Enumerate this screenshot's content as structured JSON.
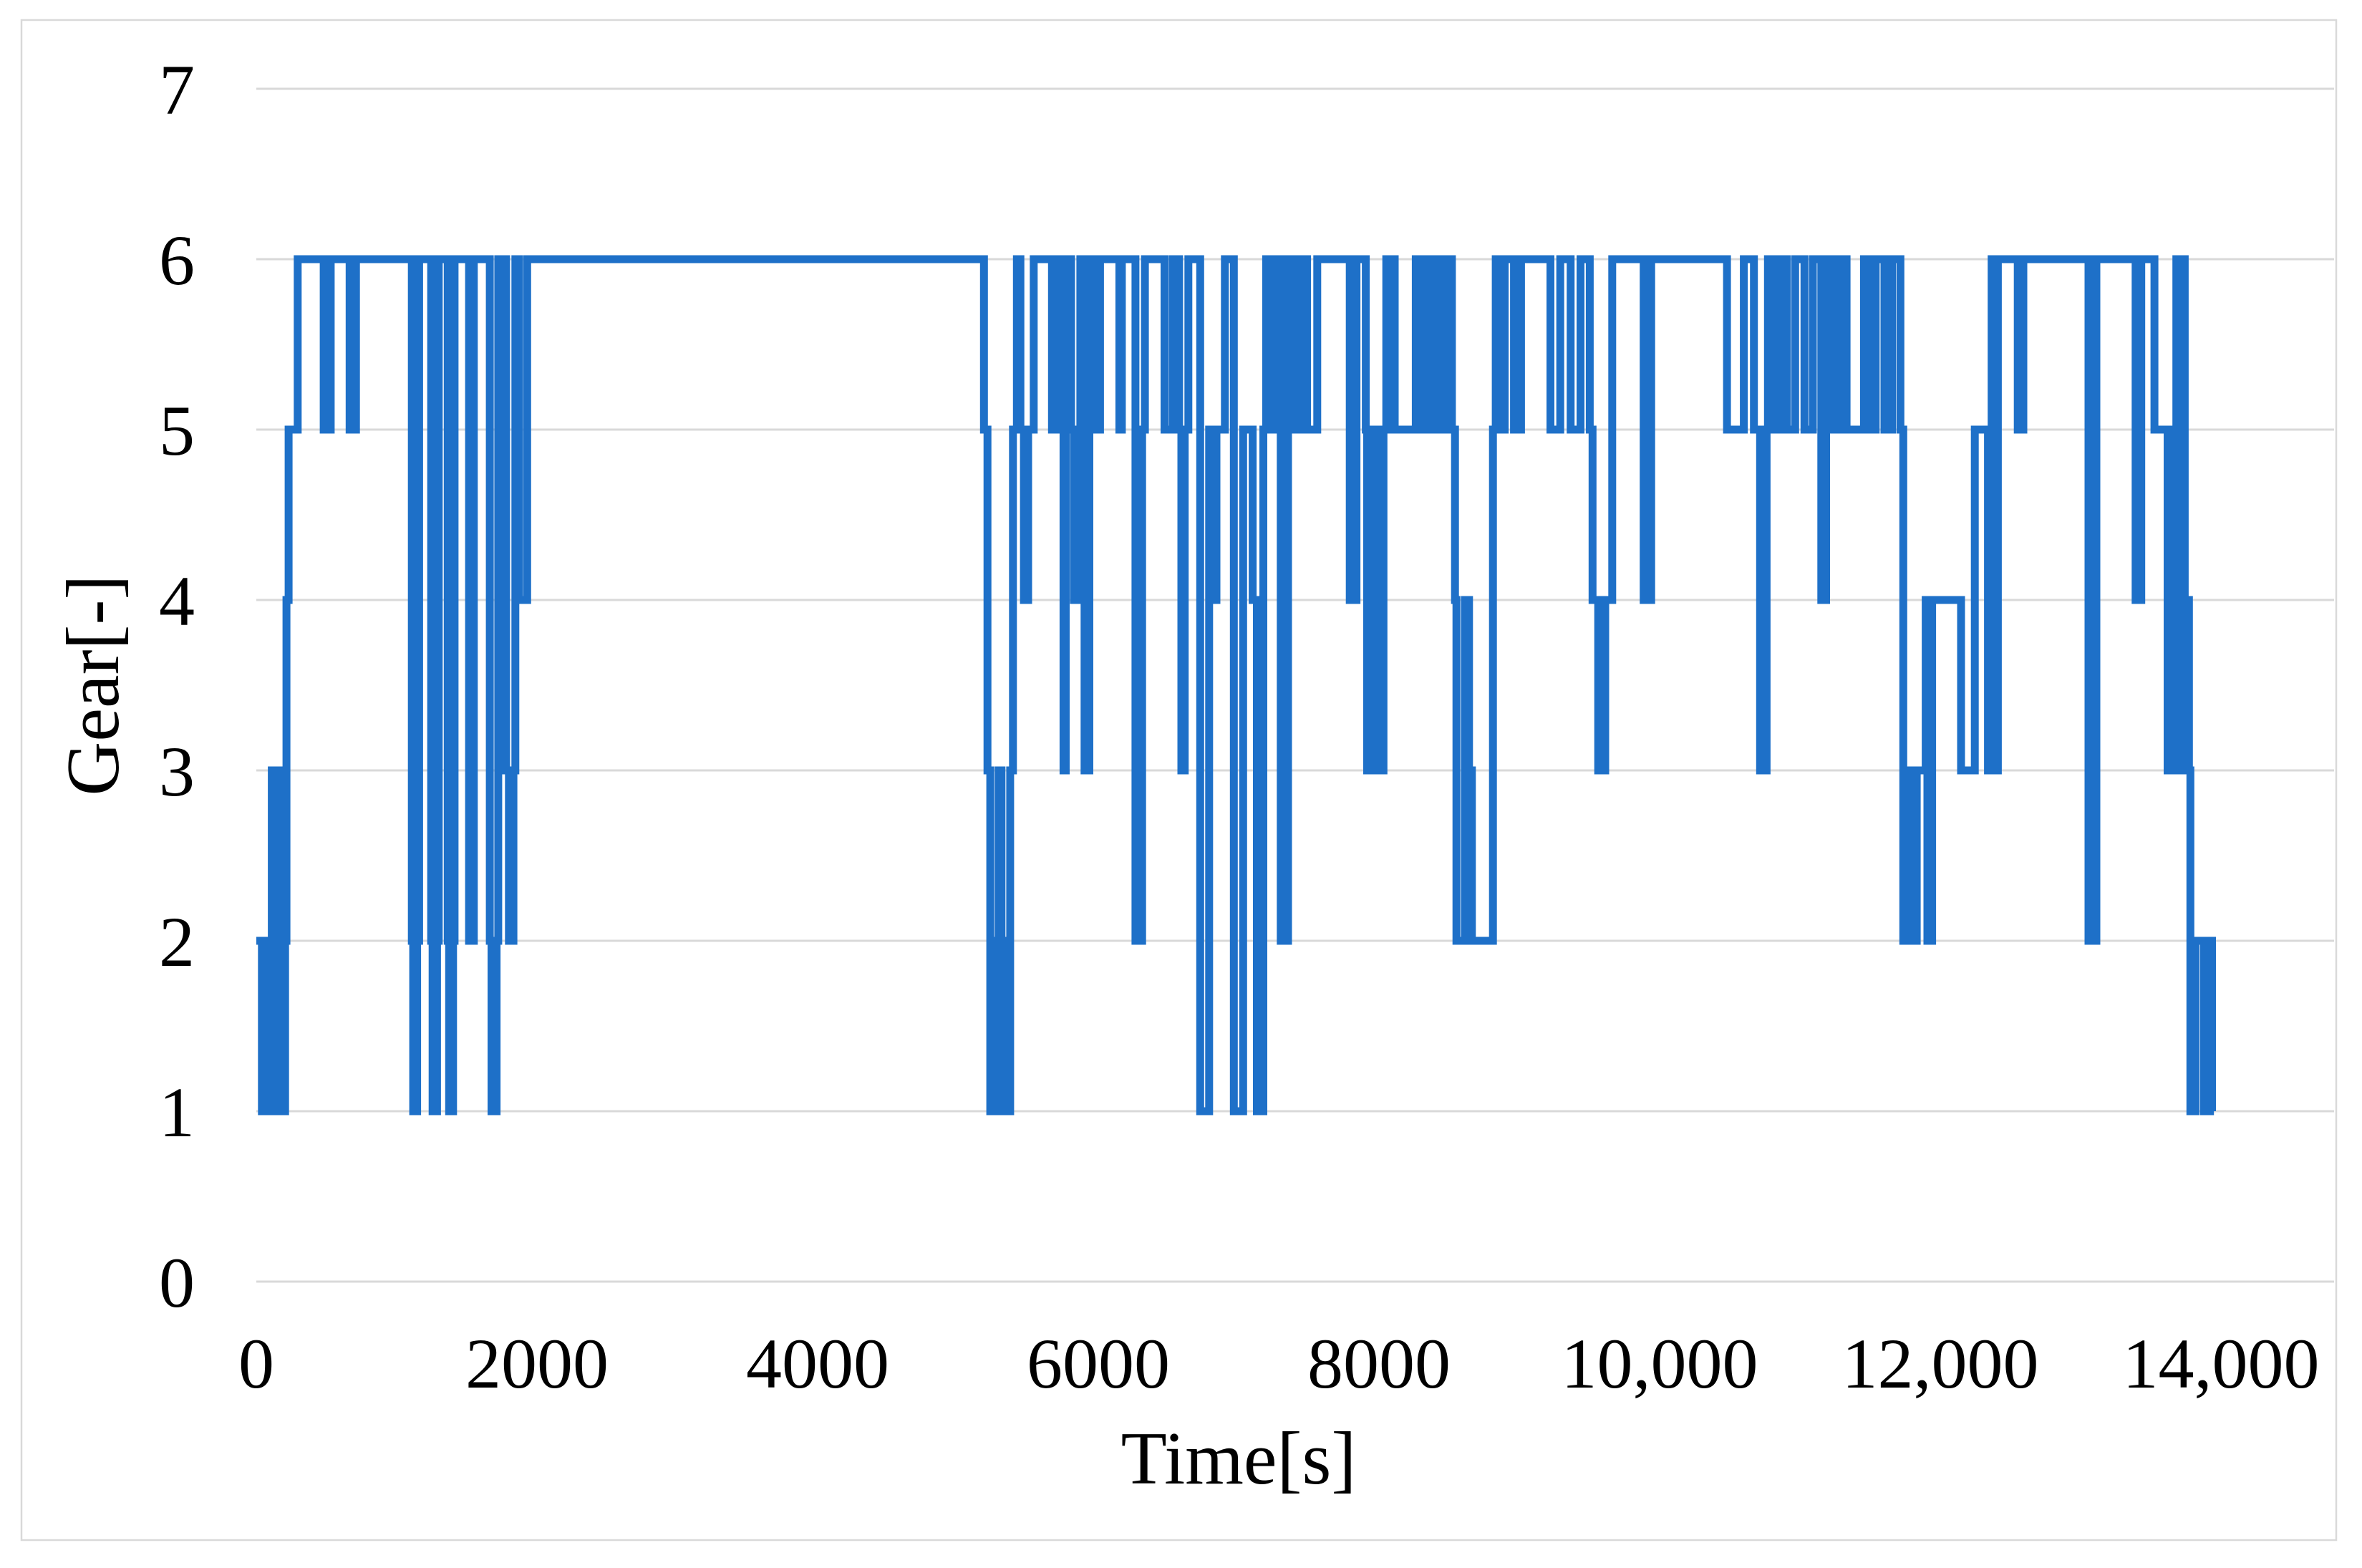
{
  "chart": {
    "background": "#FFFFFF",
    "border_color": "#D9D9D9",
    "gridline_color": "#D9D9D9",
    "line_color": "#1E70C8",
    "text_color": "#000000",
    "line_width": 11
  },
  "chart_data": {
    "type": "line",
    "step": true,
    "title": "",
    "xlabel": "Time[s]",
    "ylabel": "Gear[-]",
    "xlim": [
      0,
      14800
    ],
    "ylim": [
      0,
      7
    ],
    "grid": "horizontal-only",
    "legend_position": "none",
    "x_ticks": [
      {
        "value": 0,
        "label": "0"
      },
      {
        "value": 2000,
        "label": "2000"
      },
      {
        "value": 4000,
        "label": "4000"
      },
      {
        "value": 6000,
        "label": "6000"
      },
      {
        "value": 8000,
        "label": "8000"
      },
      {
        "value": 10000,
        "label": "10,000"
      },
      {
        "value": 12000,
        "label": "12,000"
      },
      {
        "value": 14000,
        "label": "14,000"
      }
    ],
    "y_ticks": [
      {
        "value": 0,
        "label": "0"
      },
      {
        "value": 1,
        "label": "1"
      },
      {
        "value": 2,
        "label": "2"
      },
      {
        "value": 3,
        "label": "3"
      },
      {
        "value": 4,
        "label": "4"
      },
      {
        "value": 5,
        "label": "5"
      },
      {
        "value": 6,
        "label": "6"
      },
      {
        "value": 7,
        "label": "7"
      }
    ],
    "series": [
      {
        "name": "Gear",
        "points": [
          [
            0,
            2
          ],
          [
            40,
            1
          ],
          [
            70,
            2
          ],
          [
            90,
            1
          ],
          [
            110,
            3
          ],
          [
            135,
            1
          ],
          [
            160,
            3
          ],
          [
            185,
            1
          ],
          [
            205,
            2
          ],
          [
            215,
            4
          ],
          [
            230,
            5
          ],
          [
            295,
            6
          ],
          [
            480,
            5
          ],
          [
            530,
            6
          ],
          [
            665,
            5
          ],
          [
            710,
            6
          ],
          [
            1108,
            2
          ],
          [
            1118,
            1
          ],
          [
            1146,
            2
          ],
          [
            1160,
            6
          ],
          [
            1246,
            2
          ],
          [
            1256,
            1
          ],
          [
            1288,
            2
          ],
          [
            1300,
            6
          ],
          [
            1364,
            2
          ],
          [
            1374,
            1
          ],
          [
            1402,
            2
          ],
          [
            1413,
            6
          ],
          [
            1516,
            2
          ],
          [
            1550,
            6
          ],
          [
            1664,
            2
          ],
          [
            1676,
            1
          ],
          [
            1712,
            2
          ],
          [
            1724,
            6
          ],
          [
            1780,
            3
          ],
          [
            1800,
            2
          ],
          [
            1832,
            3
          ],
          [
            1846,
            6
          ],
          [
            1872,
            4
          ],
          [
            1930,
            6
          ],
          [
            5185,
            5
          ],
          [
            5210,
            3
          ],
          [
            5230,
            1
          ],
          [
            5258,
            2
          ],
          [
            5274,
            1
          ],
          [
            5290,
            3
          ],
          [
            5310,
            1
          ],
          [
            5330,
            2
          ],
          [
            5345,
            1
          ],
          [
            5372,
            3
          ],
          [
            5392,
            5
          ],
          [
            5420,
            6
          ],
          [
            5445,
            5
          ],
          [
            5470,
            4
          ],
          [
            5500,
            5
          ],
          [
            5540,
            6
          ],
          [
            5670,
            5
          ],
          [
            5705,
            6
          ],
          [
            5737,
            5
          ],
          [
            5752,
            3
          ],
          [
            5768,
            5
          ],
          [
            5788,
            6
          ],
          [
            5806,
            5
          ],
          [
            5826,
            4
          ],
          [
            5846,
            5
          ],
          [
            5872,
            6
          ],
          [
            5902,
            3
          ],
          [
            5936,
            6
          ],
          [
            5968,
            5
          ],
          [
            6012,
            6
          ],
          [
            6150,
            5
          ],
          [
            6168,
            6
          ],
          [
            6265,
            2
          ],
          [
            6312,
            5
          ],
          [
            6332,
            6
          ],
          [
            6472,
            5
          ],
          [
            6530,
            6
          ],
          [
            6576,
            5
          ],
          [
            6592,
            3
          ],
          [
            6616,
            5
          ],
          [
            6642,
            6
          ],
          [
            6726,
            1
          ],
          [
            6790,
            5
          ],
          [
            6812,
            4
          ],
          [
            6842,
            5
          ],
          [
            6902,
            6
          ],
          [
            6966,
            1
          ],
          [
            7032,
            5
          ],
          [
            7100,
            4
          ],
          [
            7130,
            1
          ],
          [
            7176,
            5
          ],
          [
            7196,
            6
          ],
          [
            7252,
            5
          ],
          [
            7272,
            6
          ],
          [
            7300,
            2
          ],
          [
            7352,
            6
          ],
          [
            7406,
            5
          ],
          [
            7436,
            6
          ],
          [
            7488,
            5
          ],
          [
            7560,
            6
          ],
          [
            7792,
            4
          ],
          [
            7840,
            6
          ],
          [
            7906,
            5
          ],
          [
            7916,
            3
          ],
          [
            7952,
            5
          ],
          [
            7992,
            3
          ],
          [
            8032,
            5
          ],
          [
            8052,
            6
          ],
          [
            8072,
            5
          ],
          [
            8092,
            6
          ],
          [
            8112,
            5
          ],
          [
            8262,
            6
          ],
          [
            8292,
            5
          ],
          [
            8312,
            6
          ],
          [
            8366,
            5
          ],
          [
            8392,
            6
          ],
          [
            8422,
            5
          ],
          [
            8466,
            6
          ],
          [
            8520,
            5
          ],
          [
            8542,
            4
          ],
          [
            8552,
            2
          ],
          [
            8612,
            4
          ],
          [
            8642,
            3
          ],
          [
            8662,
            2
          ],
          [
            8812,
            5
          ],
          [
            8832,
            6
          ],
          [
            8852,
            5
          ],
          [
            8896,
            6
          ],
          [
            8962,
            5
          ],
          [
            9012,
            6
          ],
          [
            9222,
            5
          ],
          [
            9292,
            6
          ],
          [
            9366,
            5
          ],
          [
            9436,
            6
          ],
          [
            9502,
            5
          ],
          [
            9522,
            4
          ],
          [
            9562,
            3
          ],
          [
            9612,
            4
          ],
          [
            9662,
            6
          ],
          [
            9886,
            4
          ],
          [
            9940,
            6
          ],
          [
            10480,
            5
          ],
          [
            10600,
            6
          ],
          [
            10672,
            5
          ],
          [
            10716,
            3
          ],
          [
            10762,
            5
          ],
          [
            10772,
            6
          ],
          [
            10822,
            5
          ],
          [
            10870,
            6
          ],
          [
            10906,
            5
          ],
          [
            10966,
            6
          ],
          [
            11032,
            5
          ],
          [
            11092,
            6
          ],
          [
            11152,
            4
          ],
          [
            11186,
            6
          ],
          [
            11232,
            5
          ],
          [
            11282,
            6
          ],
          [
            11332,
            5
          ],
          [
            11456,
            6
          ],
          [
            11502,
            5
          ],
          [
            11540,
            6
          ],
          [
            11602,
            5
          ],
          [
            11656,
            6
          ],
          [
            11716,
            5
          ],
          [
            11736,
            2
          ],
          [
            11766,
            3
          ],
          [
            11790,
            2
          ],
          [
            11832,
            3
          ],
          [
            11896,
            4
          ],
          [
            11908,
            2
          ],
          [
            11942,
            4
          ],
          [
            12148,
            3
          ],
          [
            12246,
            5
          ],
          [
            12340,
            3
          ],
          [
            12366,
            6
          ],
          [
            12382,
            3
          ],
          [
            12410,
            6
          ],
          [
            12552,
            5
          ],
          [
            12592,
            6
          ],
          [
            13056,
            2
          ],
          [
            13112,
            6
          ],
          [
            13392,
            4
          ],
          [
            13432,
            6
          ],
          [
            13526,
            5
          ],
          [
            13620,
            3
          ],
          [
            13648,
            5
          ],
          [
            13668,
            3
          ],
          [
            13682,
            6
          ],
          [
            13702,
            3
          ],
          [
            13732,
            6
          ],
          [
            13742,
            4
          ],
          [
            13772,
            3
          ],
          [
            13782,
            1
          ],
          [
            13820,
            2
          ],
          [
            13880,
            1
          ],
          [
            13906,
            2
          ],
          [
            13936,
            1
          ],
          [
            13950,
            1
          ]
        ]
      }
    ]
  }
}
